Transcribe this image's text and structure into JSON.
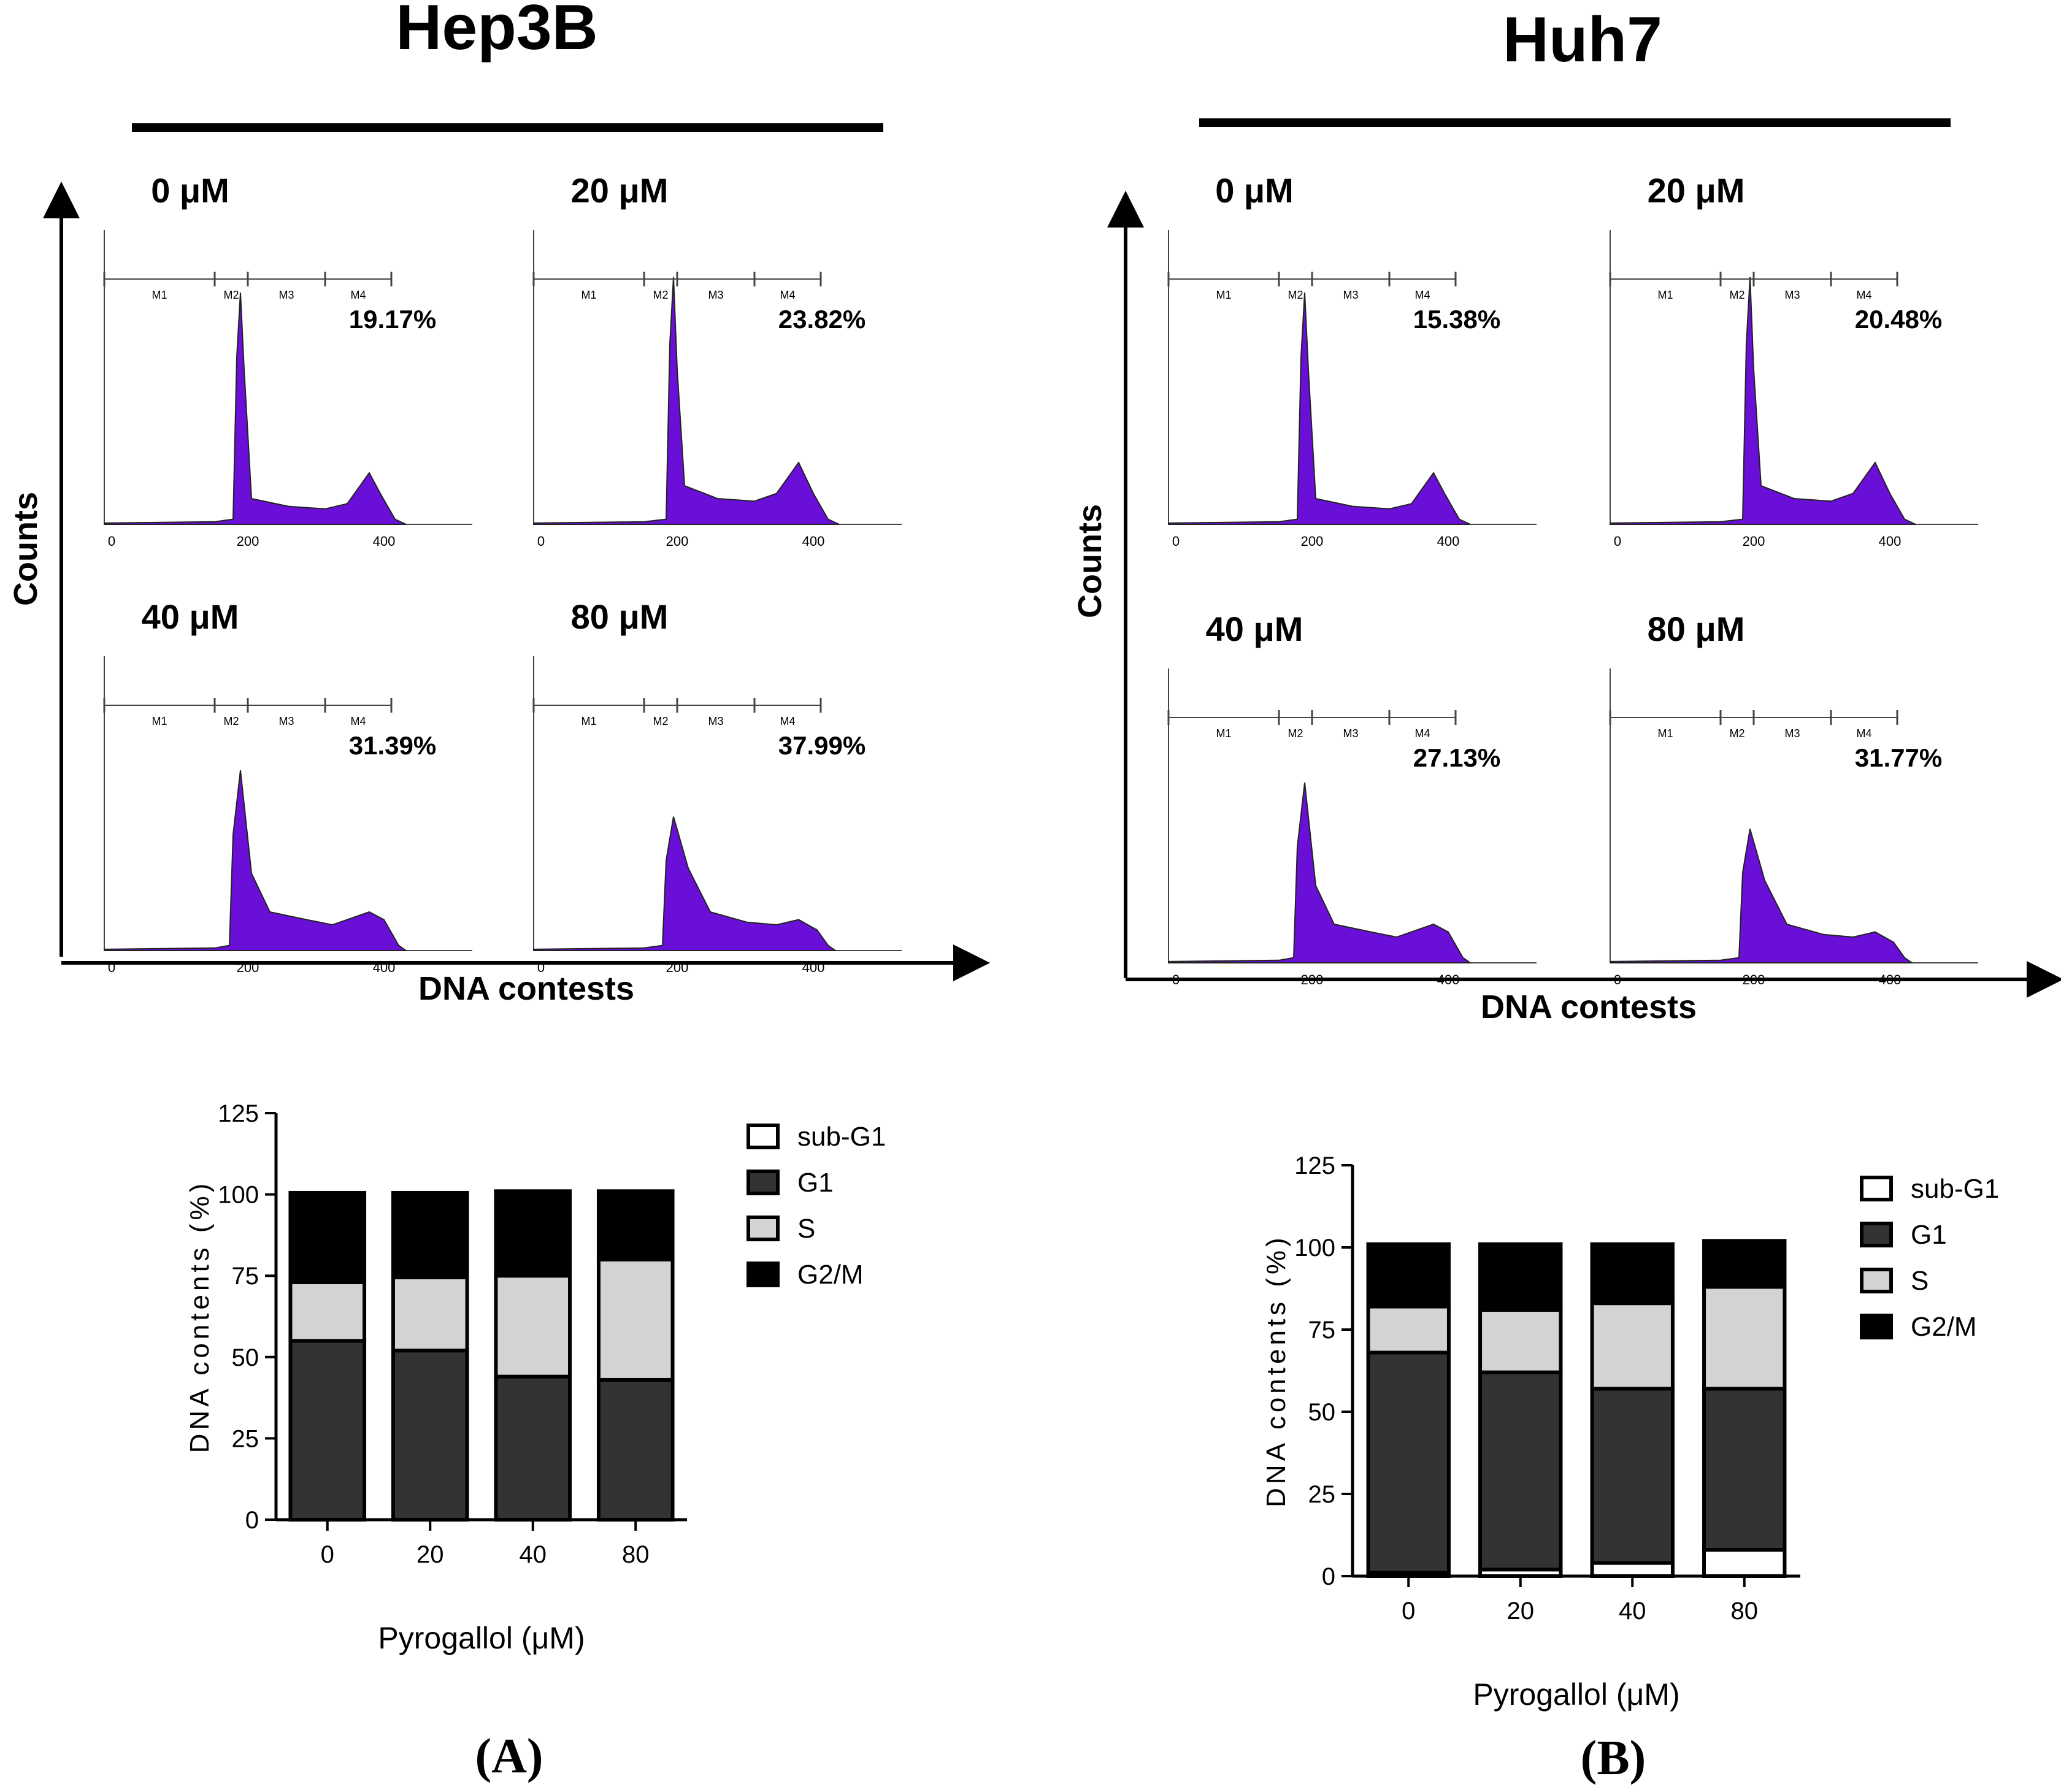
{
  "panels": [
    {
      "cell_line": "Hep3B",
      "panel_label": "(A)",
      "y_axis_label": "Counts",
      "x_axis_label": "DNA contests",
      "gate_labels": [
        "M1",
        "M2",
        "M3",
        "M4"
      ],
      "histograms": [
        {
          "dose": "0 μM",
          "pct": "19.17%",
          "ticks": [
            "0",
            "200",
            "400"
          ]
        },
        {
          "dose": "20 μM",
          "pct": "23.82%",
          "ticks": [
            "0",
            "200",
            "400"
          ]
        },
        {
          "dose": "40 μM",
          "pct": "31.39%",
          "ticks": [
            "0",
            "200",
            "400"
          ]
        },
        {
          "dose": "80 μM",
          "pct": "37.99%",
          "ticks": [
            "0",
            "200",
            "400"
          ]
        }
      ]
    },
    {
      "cell_line": "Huh7",
      "panel_label": "(B)",
      "y_axis_label": "Counts",
      "x_axis_label": "DNA contests",
      "gate_labels": [
        "M1",
        "M2",
        "M3",
        "M4"
      ],
      "histograms": [
        {
          "dose": "0 μM",
          "pct": "15.38%",
          "ticks": [
            "0",
            "200",
            "400"
          ]
        },
        {
          "dose": "20 μM",
          "pct": "20.48%",
          "ticks": [
            "0",
            "200",
            "400"
          ]
        },
        {
          "dose": "40 μM",
          "pct": "27.13%",
          "ticks": [
            "0",
            "200",
            "400"
          ]
        },
        {
          "dose": "80 μM",
          "pct": "31.77%",
          "ticks": [
            "0",
            "200",
            "400"
          ]
        }
      ]
    }
  ],
  "colors": {
    "histogram_fill": "#6a0fd8",
    "subG1": "#ffffff",
    "G1": "#333333",
    "S": "#d3d3d3",
    "G2M": "#000000"
  },
  "chart_data": [
    {
      "type": "bar",
      "stacked": true,
      "title": "Hep3B",
      "categories": [
        "0",
        "20",
        "40",
        "80"
      ],
      "series": [
        {
          "name": "sub-G1",
          "values": [
            0,
            0,
            0,
            0
          ]
        },
        {
          "name": "G1",
          "values": [
            55,
            52,
            44,
            43
          ]
        },
        {
          "name": "S",
          "values": [
            18,
            22.5,
            31,
            37
          ]
        },
        {
          "name": "G2/M",
          "values": [
            27.5,
            26,
            26,
            21
          ]
        }
      ],
      "xlabel": "Pyrogallol (μM)",
      "ylabel": "DNA contents (%)",
      "ylim": [
        0,
        125
      ],
      "yticks": [
        "0",
        "25",
        "50",
        "75",
        "100",
        "125"
      ],
      "legend_position": "right"
    },
    {
      "type": "bar",
      "stacked": true,
      "title": "Huh7",
      "categories": [
        "0",
        "20",
        "40",
        "80"
      ],
      "series": [
        {
          "name": "sub-G1",
          "values": [
            1,
            2,
            4,
            8
          ]
        },
        {
          "name": "G1",
          "values": [
            67,
            60,
            53,
            49
          ]
        },
        {
          "name": "S",
          "values": [
            14,
            19,
            26,
            31
          ]
        },
        {
          "name": "G2/M",
          "values": [
            19,
            20,
            18,
            14
          ]
        }
      ],
      "xlabel": "Pyrogallol (μM)",
      "ylabel": "DNA contents (%)",
      "ylim": [
        0,
        125
      ],
      "yticks": [
        "0",
        "25",
        "50",
        "75",
        "100",
        "125"
      ],
      "legend_position": "right"
    }
  ]
}
